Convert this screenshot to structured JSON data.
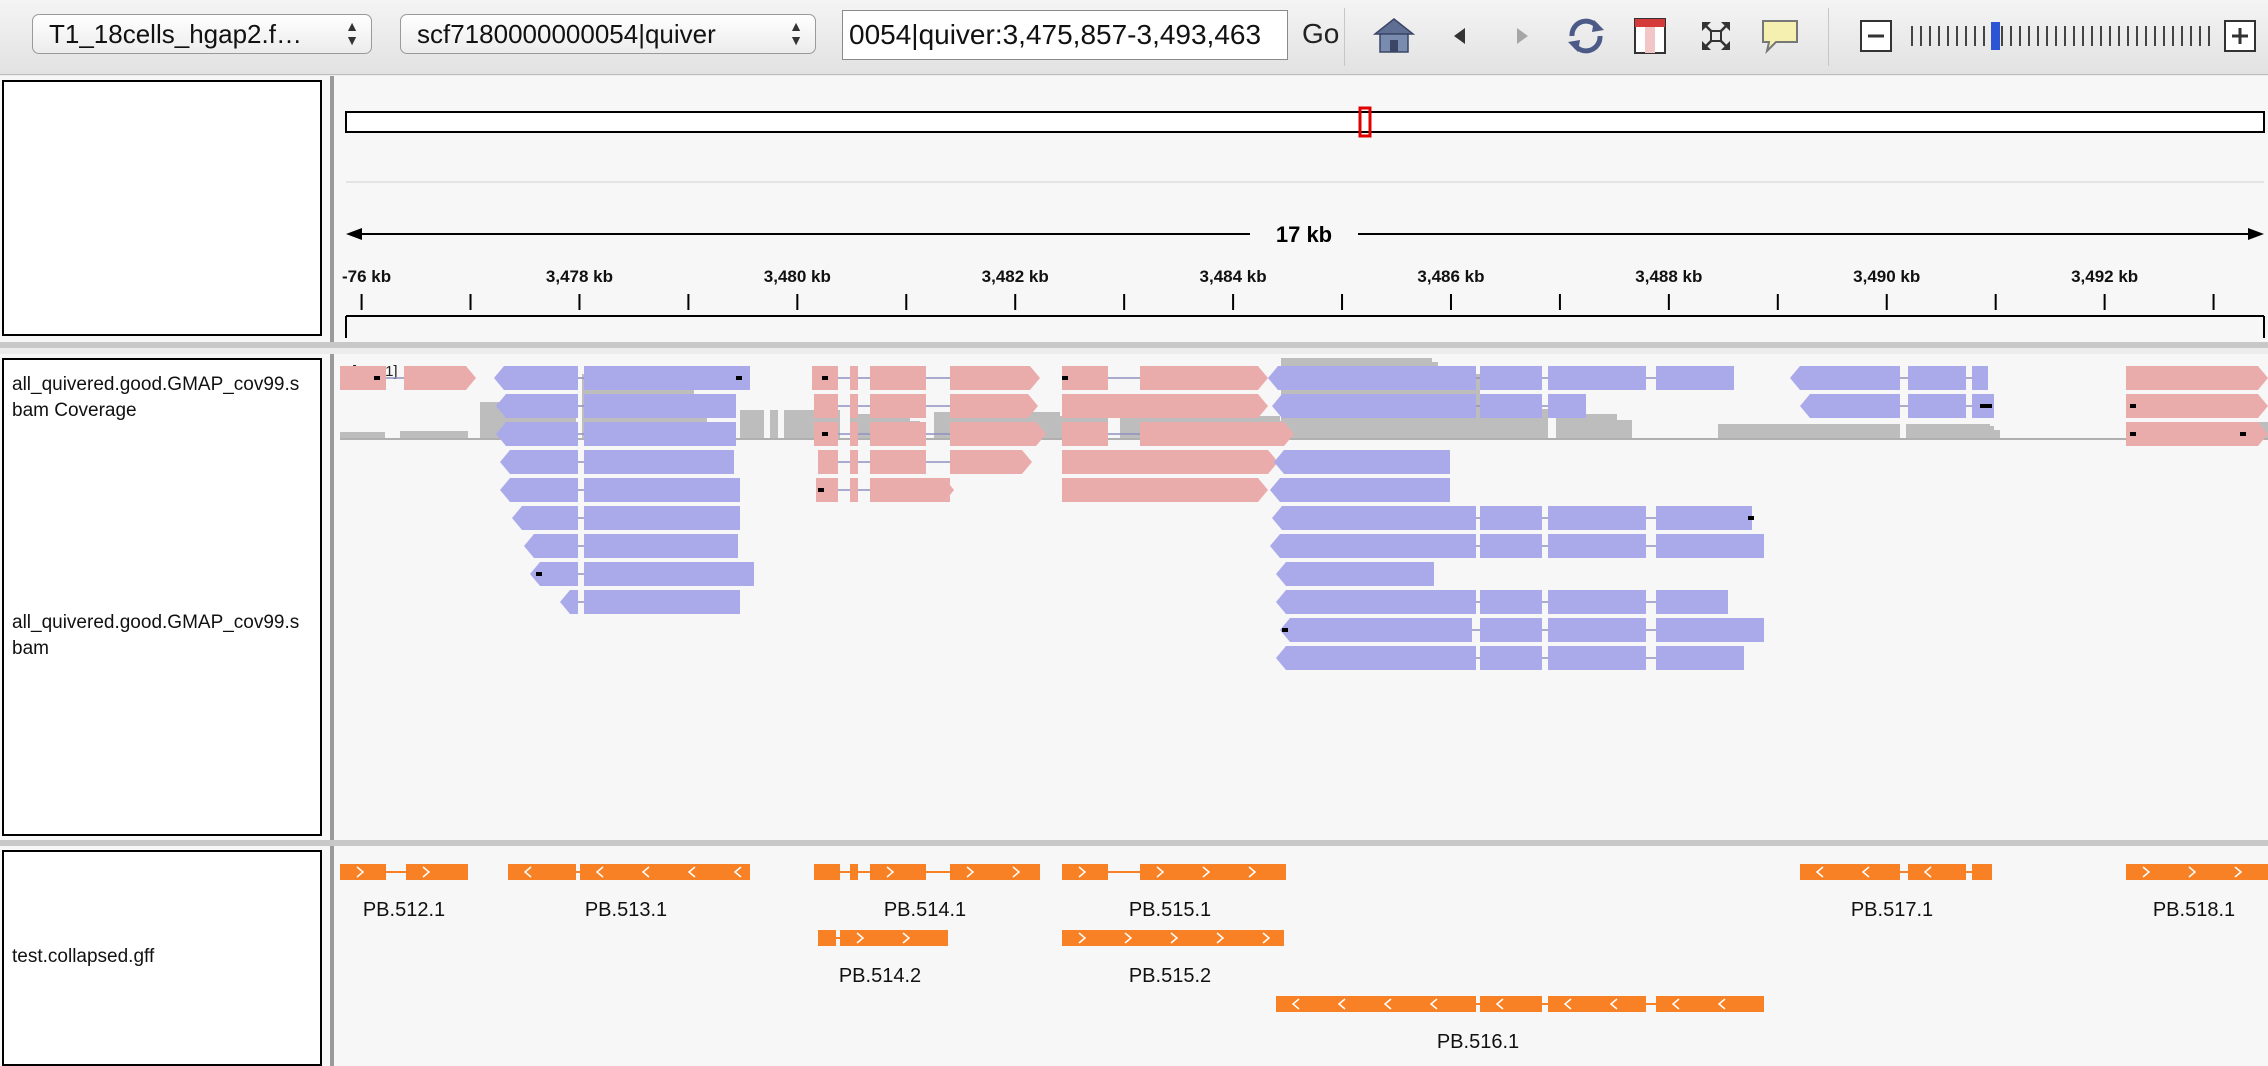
{
  "toolbar": {
    "genome": "T1_18cells_hgap2.f…",
    "chromosome": "scf7180000000054|quiver",
    "locus": "0054|quiver:3,475,857-3,493,463",
    "go_label": "Go"
  },
  "ruler": {
    "span_label": "17 kb",
    "ticks": [
      {
        "pos": 3476000,
        "label": "-76 kb"
      },
      {
        "pos": 3478000,
        "label": "3,478 kb"
      },
      {
        "pos": 3480000,
        "label": "3,480 kb"
      },
      {
        "pos": 3482000,
        "label": "3,482 kb"
      },
      {
        "pos": 3484000,
        "label": "3,484 kb"
      },
      {
        "pos": 3486000,
        "label": "3,486 kb"
      },
      {
        "pos": 3488000,
        "label": "3,488 kb"
      },
      {
        "pos": 3490000,
        "label": "3,490 kb"
      },
      {
        "pos": 3492000,
        "label": "3,492 kb"
      }
    ]
  },
  "tracks": {
    "coverage_label_1": "all_quivered.good.GMAP_cov99.s",
    "coverage_label_2": "bam Coverage",
    "coverage_range": "[0 - 11]",
    "alignment_label_1": "all_quivered.good.GMAP_cov99.s",
    "alignment_label_2": "bam",
    "gff_label": "test.collapsed.gff"
  },
  "genes": [
    {
      "name": "PB.512.1"
    },
    {
      "name": "PB.513.1"
    },
    {
      "name": "PB.514.1"
    },
    {
      "name": "PB.515.1"
    },
    {
      "name": "PB.517.1"
    },
    {
      "name": "PB.518.1"
    },
    {
      "name": "PB.514.2"
    },
    {
      "name": "PB.515.2"
    },
    {
      "name": "PB.516.1"
    }
  ],
  "colors": {
    "forward_read": "#eaabab",
    "reverse_read": "#aaaaea",
    "coverage": "#bdbdbd",
    "feature": "#f98125",
    "region_box": "#e00000"
  }
}
